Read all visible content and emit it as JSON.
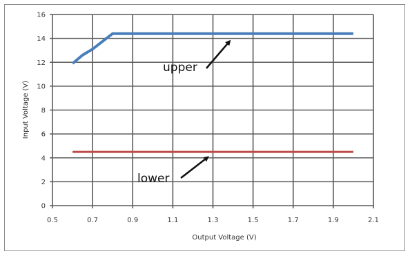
{
  "chart_data": {
    "type": "line",
    "xlabel": "Output Voltage (V)",
    "ylabel": "Input Voltage (V)",
    "xlim": [
      0.5,
      2.1
    ],
    "ylim": [
      0,
      16
    ],
    "x_ticks": [
      0.5,
      0.7,
      0.9,
      1.1,
      1.3,
      1.5,
      1.7,
      1.9,
      2.1
    ],
    "x_tick_labels": [
      "0.5",
      "0.7",
      "0.9",
      "1.1",
      "1.3",
      "1.5",
      "1.7",
      "1.9",
      "2.1"
    ],
    "y_ticks": [
      0,
      2,
      4,
      6,
      8,
      10,
      12,
      14,
      16
    ],
    "y_tick_labels": [
      "0",
      "2",
      "4",
      "6",
      "8",
      "10",
      "12",
      "14",
      "16"
    ],
    "grid": true,
    "legend": "none",
    "series": [
      {
        "color": "#4a7ebb",
        "points": [
          [
            0.6,
            11.9
          ],
          [
            0.65,
            12.6
          ],
          [
            0.7,
            13.1
          ],
          [
            0.8,
            14.4
          ],
          [
            2.0,
            14.4
          ]
        ]
      },
      {
        "color": "#be4b48",
        "points": [
          [
            0.6,
            4.5
          ],
          [
            2.0,
            4.5
          ]
        ]
      }
    ],
    "annotations": [
      {
        "text": "upper",
        "target": [
          1.38,
          13.7
        ]
      },
      {
        "text": "lower",
        "target": [
          1.27,
          4.0
        ]
      }
    ]
  }
}
